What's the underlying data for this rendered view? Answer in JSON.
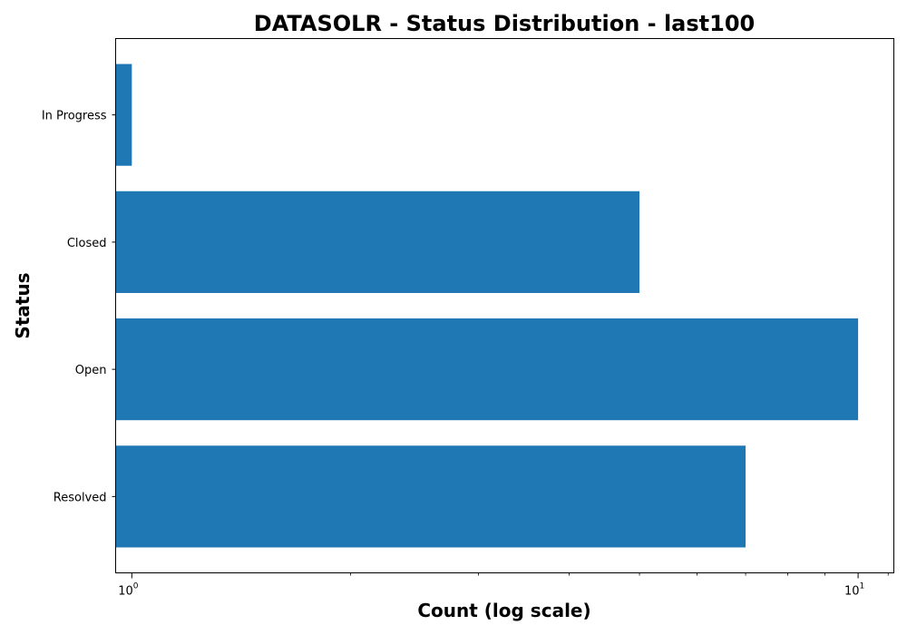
{
  "chart_data": {
    "type": "bar",
    "orientation": "horizontal",
    "title": "DATASOLR - Status Distribution - last100",
    "xlabel": "Count (log scale)",
    "ylabel": "Status",
    "x_scale": "log",
    "xlim": [
      0.95,
      11.2
    ],
    "x_ticks": [
      {
        "value": 1,
        "base": "10",
        "exponent": "0"
      },
      {
        "value": 10,
        "base": "10",
        "exponent": "1"
      }
    ],
    "categories": [
      "In Progress",
      "Closed",
      "Open",
      "Resolved"
    ],
    "values": [
      1,
      5,
      10,
      7
    ],
    "bar_color": "#1f77b4",
    "grid": false,
    "legend": null
  }
}
